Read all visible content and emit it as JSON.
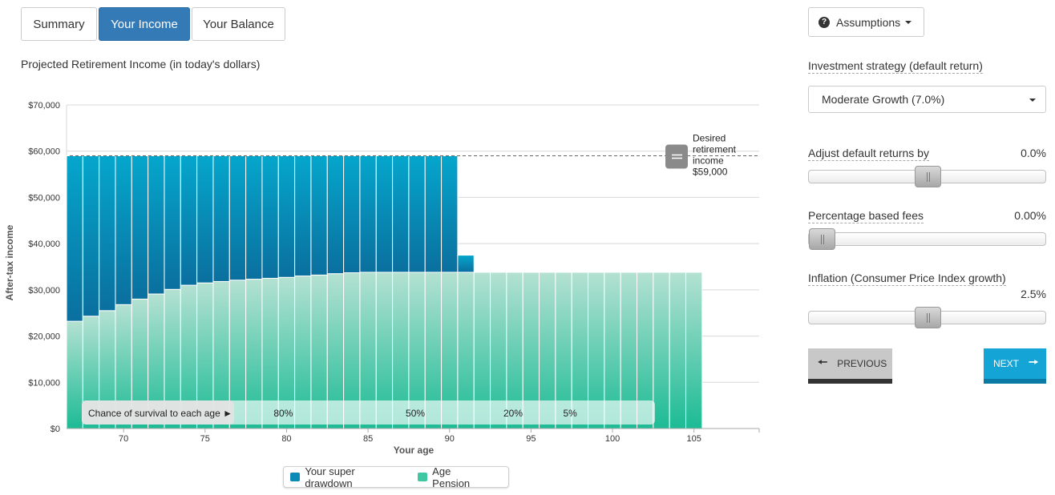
{
  "tabs": [
    {
      "label": "Summary",
      "active": false
    },
    {
      "label": "Your Income",
      "active": true
    },
    {
      "label": "Your Balance",
      "active": false
    }
  ],
  "chart_title": "Projected Retirement Income (in today's dollars)",
  "chart_data": {
    "type": "bar",
    "stacked": true,
    "ylabel": "After-tax income",
    "xlabel": "Your age",
    "ylim": [
      0,
      70000
    ],
    "xlim": [
      66.5,
      109
    ],
    "y_ticks": [
      "$0",
      "$10,000",
      "$20,000",
      "$30,000",
      "$40,000",
      "$50,000",
      "$60,000",
      "$70,000"
    ],
    "x_ticks": [
      "70",
      "75",
      "80",
      "85",
      "90",
      "95",
      "100",
      "105"
    ],
    "x_tick_values": [
      70,
      75,
      80,
      85,
      90,
      95,
      100,
      105
    ],
    "ages": [
      67,
      68,
      69,
      70,
      71,
      72,
      73,
      74,
      75,
      76,
      77,
      78,
      79,
      80,
      81,
      82,
      83,
      84,
      85,
      86,
      87,
      88,
      89,
      90,
      91,
      92,
      93,
      94,
      95,
      96,
      97,
      98,
      99,
      100,
      101,
      102,
      103,
      104,
      105
    ],
    "series": [
      {
        "name": "Age Pension",
        "color": "#1fbf9b",
        "values": [
          23200,
          24300,
          25500,
          26800,
          28000,
          29100,
          30100,
          31000,
          31500,
          31800,
          32100,
          32300,
          32500,
          32700,
          33000,
          33200,
          33500,
          33700,
          33800,
          33800,
          33800,
          33800,
          33800,
          33800,
          33800,
          33800,
          33800,
          33800,
          33800,
          33800,
          33800,
          33800,
          33800,
          33800,
          33800,
          33800,
          33800,
          33800,
          33800
        ]
      },
      {
        "name": "Your super drawdown",
        "color": "#0a88b6",
        "values": [
          35800,
          34700,
          33500,
          32200,
          31000,
          29900,
          28900,
          28000,
          27500,
          27200,
          26900,
          26700,
          26500,
          26300,
          26000,
          25800,
          25500,
          25300,
          25200,
          25200,
          25200,
          25200,
          25200,
          25200,
          3700,
          0,
          0,
          0,
          0,
          0,
          0,
          0,
          0,
          0,
          0,
          0,
          0,
          0,
          0
        ]
      }
    ],
    "desired_income": {
      "value": 59000,
      "label_lines": [
        "Desired",
        "retirement",
        "income",
        "$59,000"
      ]
    },
    "survival": {
      "title": "Chance of survival to each age ►",
      "markers": [
        {
          "label": "80%",
          "age": 79.8
        },
        {
          "label": "50%",
          "age": 87.9
        },
        {
          "label": "20%",
          "age": 93.9
        },
        {
          "label": "5%",
          "age": 97.4
        }
      ]
    }
  },
  "legend": [
    {
      "label": "Your super drawdown",
      "color": "#0a88b6"
    },
    {
      "label": "Age Pension",
      "color": "#3fc7a3"
    }
  ],
  "assumptions": {
    "button_label": "Assumptions",
    "icon": "question-circle-icon",
    "strategy_label": "Investment strategy (default return)",
    "strategy_value": "Moderate Growth (7.0%)",
    "adjust_label": "Adjust default returns by",
    "adjust_value": "0.0%",
    "adjust_level": 0.5,
    "fees_label": "Percentage based fees",
    "fees_value": "0.00%",
    "fees_level": 0.0,
    "inflation_label": "Inflation (Consumer Price Index growth)",
    "inflation_value": "2.5%",
    "inflation_level": 0.5
  },
  "nav": {
    "previous_label": "PREVIOUS",
    "next_label": "NEXT"
  }
}
